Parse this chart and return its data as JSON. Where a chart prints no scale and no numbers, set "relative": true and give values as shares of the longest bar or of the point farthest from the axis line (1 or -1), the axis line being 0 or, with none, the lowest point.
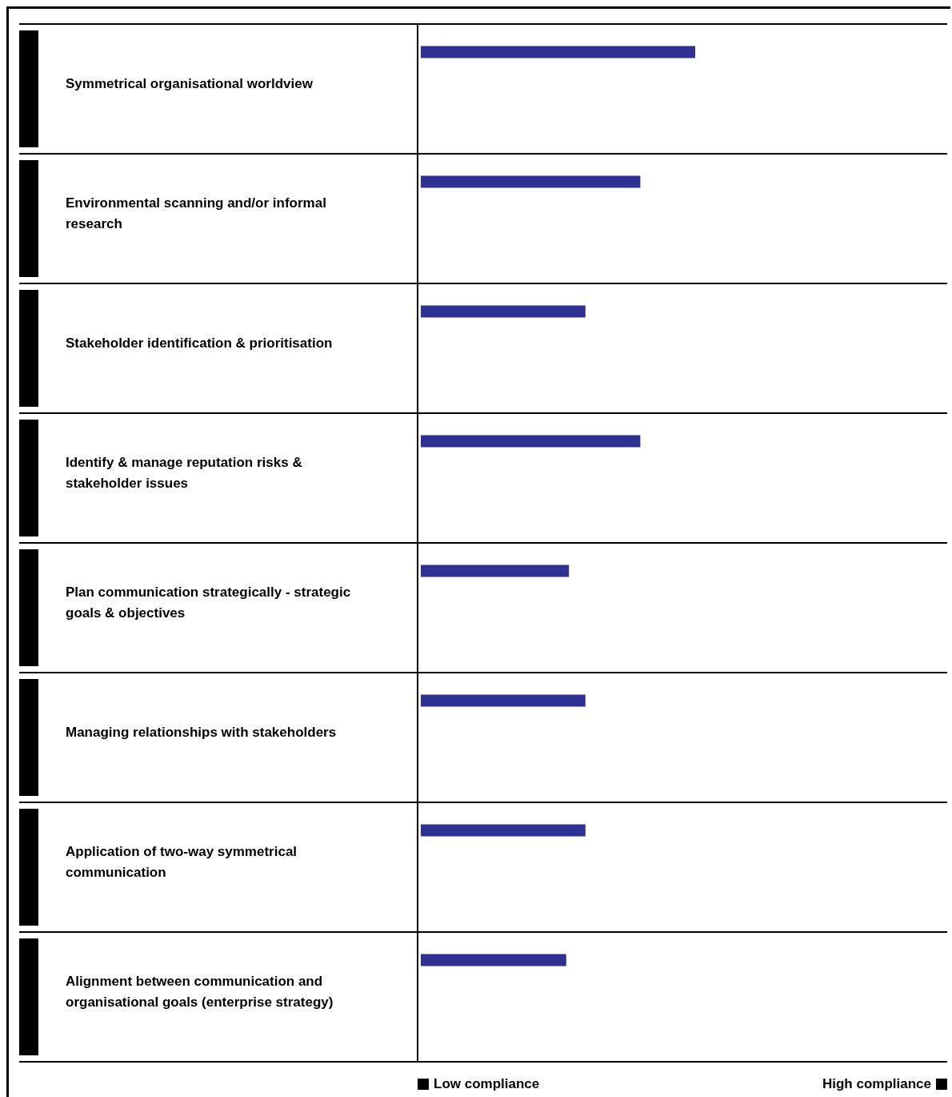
{
  "chart_data": {
    "type": "bar",
    "orientation": "horizontal",
    "relative": true,
    "categories": [
      "Symmetrical organisational worldview",
      "Environmental scanning and/or informal research",
      "Stakeholder identification & prioritisation",
      "Identify & manage reputation risks & stakeholder issues",
      "Plan communication strategically - strategic goals & objectives",
      "Managing relationships with stakeholders",
      "Application of two-way symmetrical communication",
      "Alignment between communication and organisational goals (enterprise strategy)"
    ],
    "values": [
      1,
      0.8,
      0.6,
      0.8,
      0.54,
      0.6,
      0.6,
      0.53
    ],
    "color": "#2e3192",
    "annotations": [
      "Low compliance",
      "High compliance"
    ]
  }
}
